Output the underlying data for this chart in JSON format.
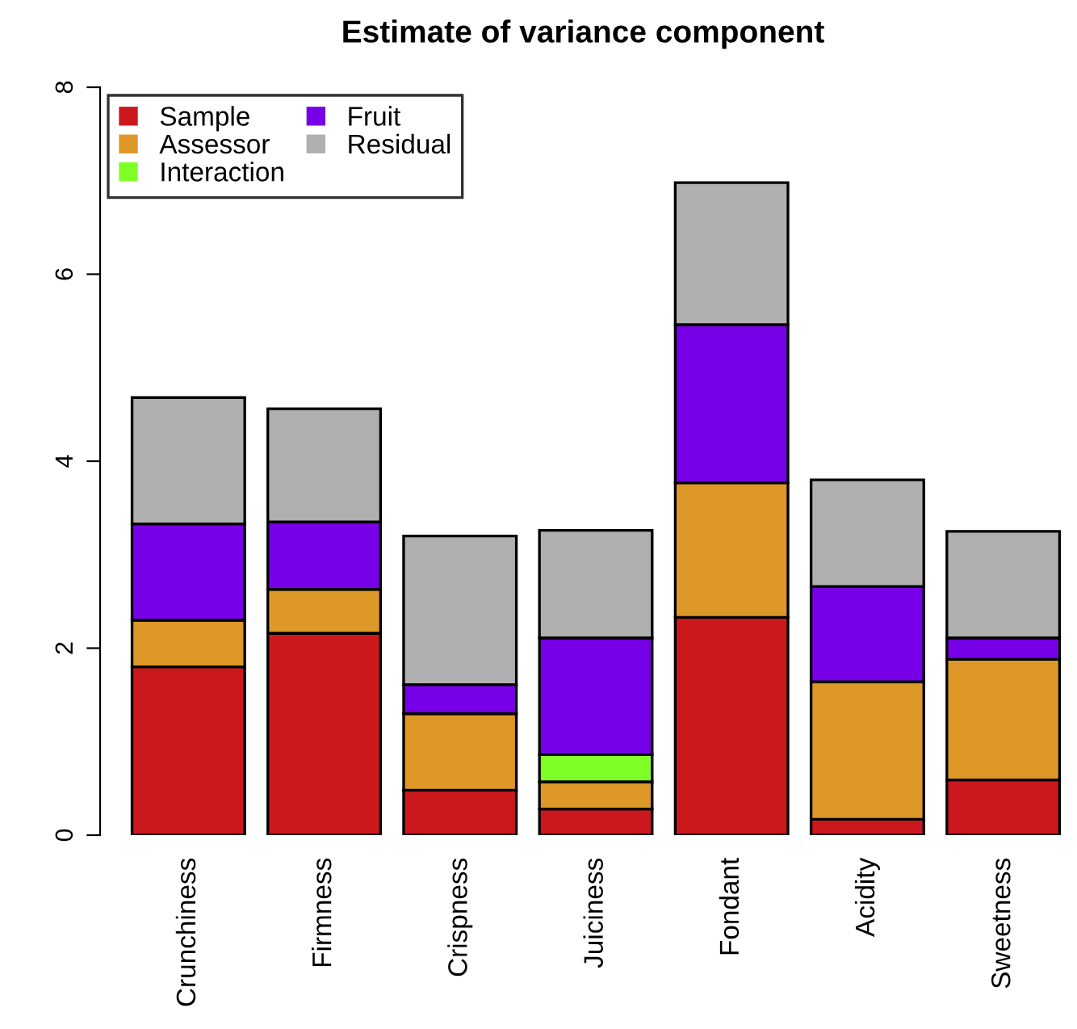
{
  "chart_data": {
    "type": "bar",
    "stacked": true,
    "title": "Estimate of variance component",
    "categories": [
      "Crunchiness",
      "Firmness",
      "Crispness",
      "Juiciness",
      "Fondant",
      "Acidity",
      "Sweetness"
    ],
    "series": [
      {
        "name": "Sample",
        "color": "#cb181d",
        "values": [
          1.8,
          2.16,
          0.48,
          0.28,
          2.33,
          0.17,
          0.59
        ]
      },
      {
        "name": "Assessor",
        "color": "#de9827",
        "values": [
          0.5,
          0.47,
          0.82,
          0.29,
          1.44,
          1.47,
          1.29
        ]
      },
      {
        "name": "Interaction",
        "color": "#80ff26",
        "values": [
          0,
          0,
          0,
          0.29,
          0,
          0,
          0
        ]
      },
      {
        "name": "Fruit",
        "color": "#7800e6",
        "values": [
          1.03,
          0.72,
          0.31,
          1.25,
          1.69,
          1.02,
          0.23
        ]
      },
      {
        "name": "Residual",
        "color": "#b0b0b0",
        "values": [
          1.35,
          1.21,
          1.59,
          1.15,
          1.52,
          1.14,
          1.14
        ]
      }
    ],
    "ylim": [
      0,
      8
    ],
    "yticks": [
      0,
      2,
      4,
      6,
      8
    ],
    "grid": false,
    "legend": "top left"
  }
}
